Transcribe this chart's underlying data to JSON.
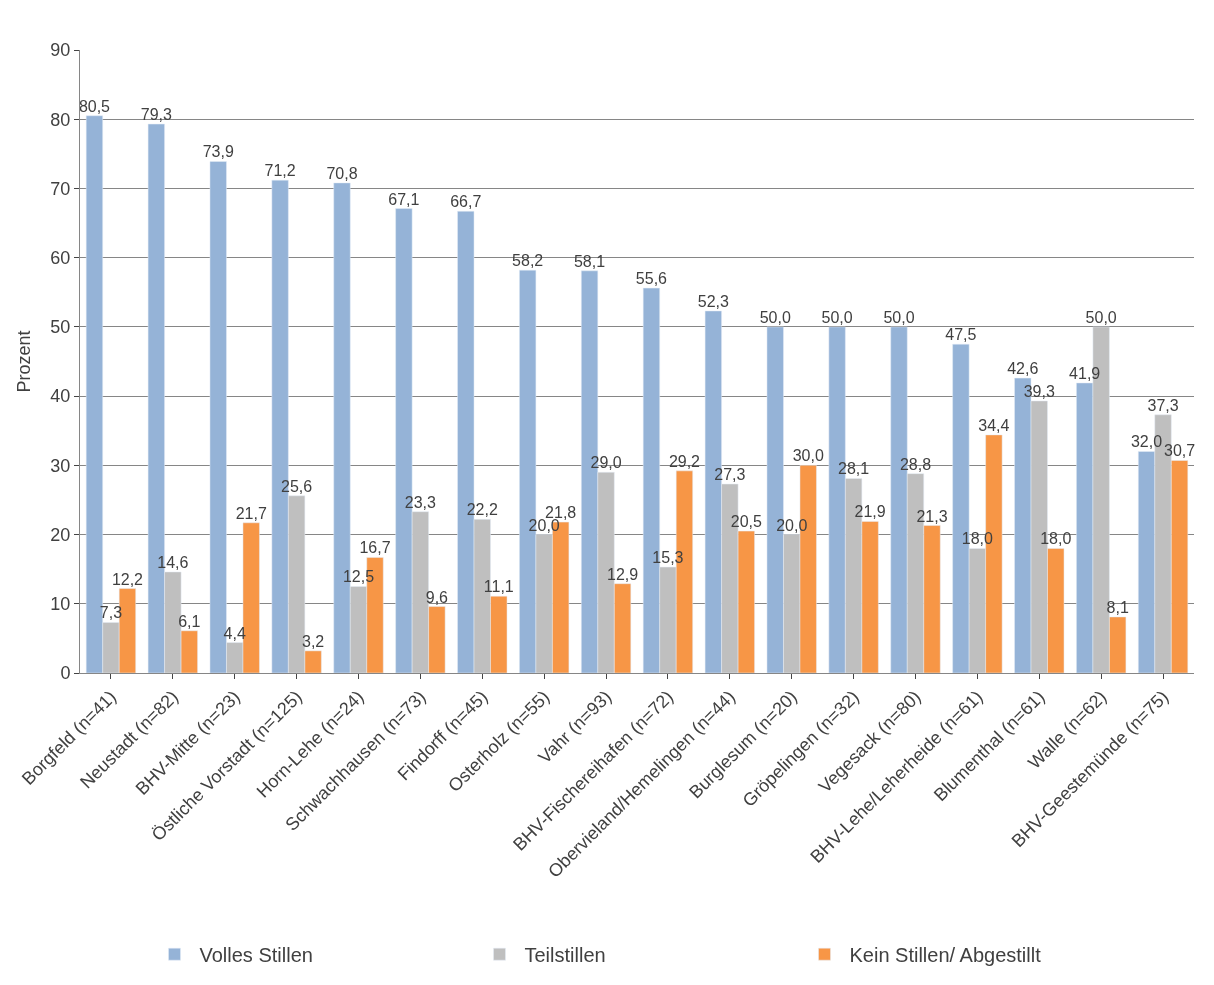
{
  "chart_data": {
    "type": "bar",
    "ylabel": "Prozent",
    "categories": [
      "Borgfeld (n=41)",
      "Neustadt (n=82)",
      "BHV-Mitte (n=23)",
      "Östliche Vorstadt (n=125)",
      "Horn-Lehe (n=24)",
      "Schwachhausen (n=73)",
      "Findorff (n=45)",
      "Osterholz (n=55)",
      "Vahr (n=93)",
      "BHV-Fischereihafen (n=72)",
      "Obervieland/Hemelingen (n=44)",
      "Burglesum (n=20)",
      "Gröpelingen (n=32)",
      "Vegesack (n=80)",
      "BHV-Lehe/Leherheide (n=61)",
      "Blumenthal (n=61)",
      "Walle (n=62)",
      "BHV-Geestemünde (n=75)"
    ],
    "series": [
      {
        "name": "Volles Stillen",
        "color": "#95b3d7",
        "values": [
          80.5,
          79.3,
          73.9,
          71.2,
          70.8,
          67.1,
          66.7,
          58.2,
          58.1,
          55.6,
          52.3,
          50.0,
          50.0,
          50.0,
          47.5,
          42.6,
          41.9,
          32.0
        ],
        "value_labels": [
          "80,5",
          "79,3",
          "73,9",
          "71,2",
          "70,8",
          "67,1",
          "66,7",
          "58,2",
          "58,1",
          "55,6",
          "52,3",
          "50,0",
          "50,0",
          "50,0",
          "47,5",
          "42,6",
          "41,9",
          "32,0"
        ]
      },
      {
        "name": "Teilstillen",
        "color": "#bfbfbf",
        "values": [
          7.3,
          14.6,
          4.4,
          25.6,
          12.5,
          23.3,
          22.2,
          20.0,
          29.0,
          15.3,
          27.3,
          20.0,
          28.1,
          28.8,
          18.0,
          39.3,
          50.0,
          37.3
        ],
        "value_labels": [
          "7,3",
          "14,6",
          "4,4",
          "25,6",
          "12,5",
          "23,3",
          "22,2",
          "20,0",
          "29,0",
          "15,3",
          "27,3",
          "20,0",
          "28,1",
          "28,8",
          "18,0",
          "39,3",
          "50,0",
          "37,3"
        ]
      },
      {
        "name": "Kein Stillen/ Abgestillt",
        "color": "#f79646",
        "values": [
          12.2,
          6.1,
          21.7,
          3.2,
          16.7,
          9.6,
          11.1,
          21.8,
          12.9,
          29.2,
          20.5,
          30.0,
          21.9,
          21.3,
          34.4,
          18.0,
          8.1,
          30.7
        ],
        "value_labels": [
          "12,2",
          "6,1",
          "21,7",
          "3,2",
          "16,7",
          "9,6",
          "11,1",
          "21,8",
          "12,9",
          "29,2",
          "20,5",
          "30,0",
          "21,9",
          "21,3",
          "34,4",
          "18,0",
          "8,1",
          "30,7"
        ]
      }
    ],
    "ylim": [
      0,
      90
    ],
    "yticks": [
      0,
      10,
      20,
      30,
      40,
      50,
      60,
      70,
      80,
      90
    ],
    "grid": "y",
    "legend": "bottom"
  }
}
